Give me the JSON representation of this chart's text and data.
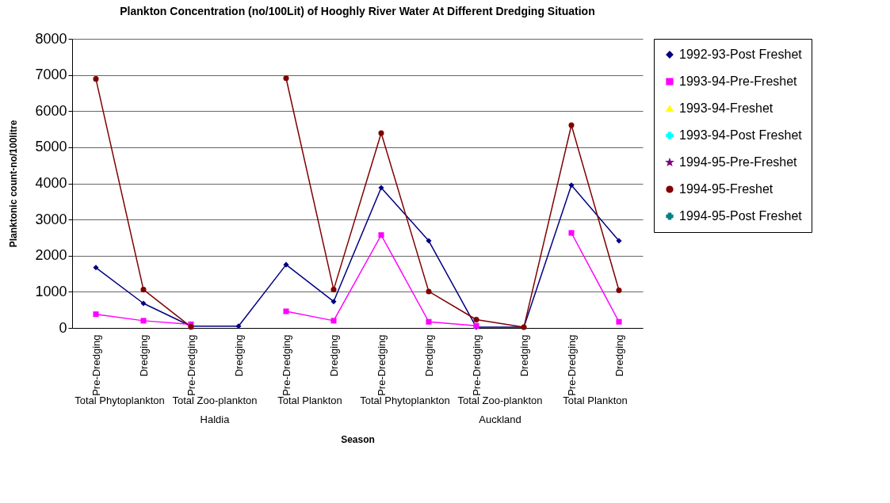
{
  "chart_data": {
    "type": "line",
    "title": "Plankton Concentration (no/100Lit) of Hooghly River Water At Different Dredging Situation",
    "xlabel": "Season",
    "ylabel": "Planktonic count-no/100litre",
    "categories": [
      "Pre-Dredging",
      "Dredging",
      "Pre-Dredging",
      "Dredging",
      "Pre-Dredging",
      "Dredging",
      "Pre-Dredging",
      "Dredging",
      "Pre-Dredging",
      "Dredging",
      "Pre-Dredging",
      "Dredging"
    ],
    "annotations": [
      "Total Phytoplankton",
      "Total Zoo-plankton",
      "Total Plankton",
      "Total Phytoplankton",
      "Total Zoo-plankton",
      "Total Plankton",
      "Haldia",
      "Auckland"
    ],
    "series": [
      {
        "name": "1992-93-Post Freshet",
        "color": "#000080",
        "marker": "diamond",
        "values": [
          1670,
          680,
          50,
          50,
          1750,
          730,
          3880,
          2410,
          20,
          20,
          3950,
          2410
        ]
      },
      {
        "name": "1993-94-Pre-Freshet",
        "color": "#ff00ff",
        "marker": "square",
        "values": [
          380,
          200,
          100,
          null,
          460,
          200,
          2570,
          170,
          60,
          null,
          2630,
          170
        ]
      },
      {
        "name": "1993-94-Freshet",
        "color": "#ffff00",
        "marker": "triangle",
        "values": [
          null,
          null,
          null,
          null,
          null,
          null,
          null,
          null,
          null,
          null,
          null,
          null
        ]
      },
      {
        "name": "1993-94-Post Freshet",
        "color": "#00ffff",
        "marker": "cross",
        "values": [
          null,
          null,
          null,
          null,
          null,
          null,
          null,
          null,
          null,
          null,
          null,
          null
        ]
      },
      {
        "name": "1994-95-Pre-Freshet",
        "color": "#800080",
        "marker": "star",
        "values": [
          null,
          null,
          null,
          null,
          null,
          null,
          null,
          null,
          null,
          null,
          null,
          null
        ]
      },
      {
        "name": "1994-95-Freshet",
        "color": "#800000",
        "marker": "circle",
        "values": [
          6890,
          1060,
          30,
          null,
          6910,
          1060,
          5390,
          1010,
          230,
          20,
          5610,
          1040
        ]
      },
      {
        "name": "1994-95-Post Freshet",
        "color": "#008080",
        "marker": "cross",
        "values": [
          null,
          null,
          null,
          null,
          null,
          null,
          null,
          null,
          null,
          null,
          null,
          null
        ]
      }
    ],
    "ylim": [
      0,
      8000
    ],
    "yticks": [
      0,
      1000,
      2000,
      3000,
      4000,
      5000,
      6000,
      7000,
      8000
    ],
    "grid": "y",
    "legend": "right"
  }
}
